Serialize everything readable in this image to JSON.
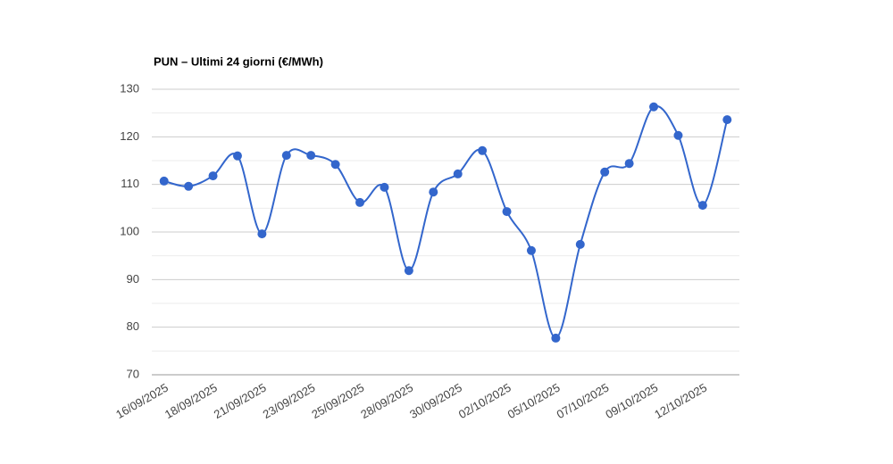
{
  "chart_data": {
    "type": "line",
    "title": "PUN – Ultimi 24 giorni (€/MWh)",
    "categories": [
      "16/09/2025",
      null,
      "18/09/2025",
      null,
      "21/09/2025",
      null,
      "23/09/2025",
      null,
      "25/09/2025",
      null,
      "28/09/2025",
      null,
      "30/09/2025",
      null,
      "02/10/2025",
      null,
      "05/10/2025",
      null,
      "07/10/2025",
      null,
      "09/10/2025",
      null,
      "12/10/2025",
      null
    ],
    "values": [
      110.7,
      109.6,
      111.8,
      116.0,
      99.6,
      116.1,
      116.1,
      114.2,
      106.2,
      109.4,
      91.9,
      108.4,
      112.2,
      117.1,
      104.3,
      96.1,
      77.7,
      97.4,
      112.6,
      114.4,
      126.3,
      120.3,
      105.6,
      123.6
    ],
    "color": "#3366cc",
    "smooth": true,
    "ylim": [
      70,
      130
    ],
    "yticks": [
      70,
      80,
      90,
      100,
      110,
      120,
      130
    ],
    "grid": true
  }
}
